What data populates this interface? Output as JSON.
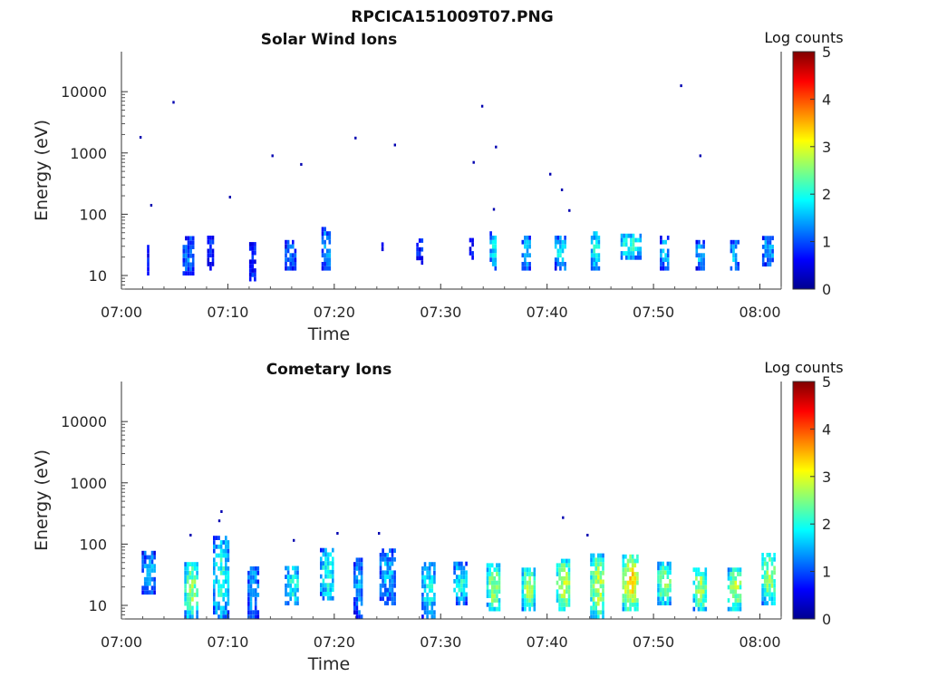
{
  "figure": {
    "title": "RPCICA151009T07.PNG"
  },
  "chart_data": [
    {
      "type": "heatmap",
      "title": "Solar Wind Ions",
      "xlabel": "Time",
      "ylabel": "Energy (eV)",
      "colorbar_label": "Log counts",
      "colorbar_ticks": [
        "0",
        "1",
        "2",
        "3",
        "4",
        "5"
      ],
      "clim": [
        0,
        5
      ],
      "colormap": "jet",
      "x_ticks": [
        "07:00",
        "07:10",
        "07:20",
        "07:30",
        "07:40",
        "07:50",
        "08:00"
      ],
      "y_ticks": [
        "10",
        "100",
        "1000",
        "10000"
      ],
      "y_scale": "log",
      "ylim": [
        6,
        45000
      ],
      "xlim_minutes": [
        0,
        62
      ],
      "bursts": [
        {
          "t": 2.5,
          "e": [
            10,
            30
          ],
          "v": 0.8,
          "w": 0.2
        },
        {
          "t": 6.2,
          "e": [
            10,
            40
          ],
          "v": 1.2,
          "w": 0.9
        },
        {
          "t": 8.3,
          "e": [
            12,
            40
          ],
          "v": 0.8,
          "w": 0.5
        },
        {
          "t": 12.3,
          "e": [
            8,
            35
          ],
          "v": 0.9,
          "w": 0.6
        },
        {
          "t": 15.8,
          "e": [
            12,
            35
          ],
          "v": 1.2,
          "w": 0.9
        },
        {
          "t": 19.2,
          "e": [
            12,
            60
          ],
          "v": 1.4,
          "w": 0.8
        },
        {
          "t": 24.5,
          "e": [
            25,
            30
          ],
          "v": 0.8,
          "w": 0.15
        },
        {
          "t": 28.0,
          "e": [
            15,
            40
          ],
          "v": 0.8,
          "w": 0.6
        },
        {
          "t": 32.8,
          "e": [
            18,
            35
          ],
          "v": 0.8,
          "w": 0.25
        },
        {
          "t": 34.9,
          "e": [
            12,
            45
          ],
          "v": 1.8,
          "w": 0.6
        },
        {
          "t": 38.0,
          "e": [
            12,
            40
          ],
          "v": 1.7,
          "w": 0.8
        },
        {
          "t": 41.2,
          "e": [
            12,
            40
          ],
          "v": 1.8,
          "w": 1.0
        },
        {
          "t": 44.5,
          "e": [
            12,
            50
          ],
          "v": 1.9,
          "w": 0.8
        },
        {
          "t": 47.8,
          "e": [
            18,
            45
          ],
          "v": 2.1,
          "w": 1.8
        },
        {
          "t": 51.0,
          "e": [
            12,
            40
          ],
          "v": 1.6,
          "w": 0.8
        },
        {
          "t": 54.3,
          "e": [
            12,
            35
          ],
          "v": 1.6,
          "w": 0.7
        },
        {
          "t": 57.6,
          "e": [
            12,
            35
          ],
          "v": 1.6,
          "w": 0.8
        },
        {
          "t": 60.7,
          "e": [
            14,
            38
          ],
          "v": 1.5,
          "w": 1.0
        }
      ],
      "specks": [
        {
          "t": 1.8,
          "e": 1800
        },
        {
          "t": 2.8,
          "e": 140
        },
        {
          "t": 4.9,
          "e": 6700
        },
        {
          "t": 10.2,
          "e": 190
        },
        {
          "t": 14.2,
          "e": 900
        },
        {
          "t": 16.9,
          "e": 650
        },
        {
          "t": 22.0,
          "e": 1750
        },
        {
          "t": 25.7,
          "e": 1350
        },
        {
          "t": 33.1,
          "e": 700
        },
        {
          "t": 33.9,
          "e": 5800
        },
        {
          "t": 35.2,
          "e": 1250
        },
        {
          "t": 35.0,
          "e": 120
        },
        {
          "t": 40.3,
          "e": 450
        },
        {
          "t": 41.4,
          "e": 250
        },
        {
          "t": 42.1,
          "e": 115
        },
        {
          "t": 52.6,
          "e": 12500
        },
        {
          "t": 54.4,
          "e": 900
        }
      ]
    },
    {
      "type": "heatmap",
      "title": "Cometary Ions",
      "xlabel": "Time",
      "ylabel": "Energy (eV)",
      "colorbar_label": "Log counts",
      "colorbar_ticks": [
        "0",
        "1",
        "2",
        "3",
        "4",
        "5"
      ],
      "clim": [
        0,
        5
      ],
      "colormap": "jet",
      "x_ticks": [
        "07:00",
        "07:10",
        "07:20",
        "07:30",
        "07:40",
        "07:50",
        "08:00"
      ],
      "y_ticks": [
        "10",
        "100",
        "1000",
        "10000"
      ],
      "y_scale": "log",
      "ylim": [
        6,
        45000
      ],
      "xlim_minutes": [
        0,
        62
      ],
      "bursts": [
        {
          "t": 2.5,
          "e": [
            15,
            70
          ],
          "v": 1.5,
          "w": 1.2
        },
        {
          "t": 6.5,
          "e": [
            6,
            45
          ],
          "v": 2.6,
          "w": 1.2
        },
        {
          "t": 9.3,
          "e": [
            6,
            120
          ],
          "v": 2.0,
          "w": 1.4
        },
        {
          "t": 12.3,
          "e": [
            6,
            40
          ],
          "v": 1.5,
          "w": 0.9
        },
        {
          "t": 16.0,
          "e": [
            10,
            40
          ],
          "v": 2.0,
          "w": 1.3
        },
        {
          "t": 19.3,
          "e": [
            12,
            80
          ],
          "v": 2.0,
          "w": 1.3
        },
        {
          "t": 22.2,
          "e": [
            6,
            55
          ],
          "v": 1.4,
          "w": 0.8
        },
        {
          "t": 25.0,
          "e": [
            10,
            80
          ],
          "v": 1.5,
          "w": 1.5
        },
        {
          "t": 28.8,
          "e": [
            6,
            45
          ],
          "v": 1.9,
          "w": 1.2
        },
        {
          "t": 31.8,
          "e": [
            10,
            45
          ],
          "v": 1.9,
          "w": 1.2
        },
        {
          "t": 34.9,
          "e": [
            8,
            45
          ],
          "v": 2.7,
          "w": 1.2
        },
        {
          "t": 38.2,
          "e": [
            8,
            40
          ],
          "v": 2.6,
          "w": 1.2
        },
        {
          "t": 41.5,
          "e": [
            8,
            50
          ],
          "v": 2.8,
          "w": 1.3
        },
        {
          "t": 44.7,
          "e": [
            6,
            60
          ],
          "v": 2.8,
          "w": 1.3
        },
        {
          "t": 47.8,
          "e": [
            8,
            60
          ],
          "v": 3.3,
          "w": 1.5
        },
        {
          "t": 51.0,
          "e": [
            10,
            45
          ],
          "v": 2.6,
          "w": 1.3
        },
        {
          "t": 54.3,
          "e": [
            8,
            40
          ],
          "v": 2.7,
          "w": 1.2
        },
        {
          "t": 57.6,
          "e": [
            8,
            40
          ],
          "v": 2.7,
          "w": 1.3
        },
        {
          "t": 60.8,
          "e": [
            10,
            70
          ],
          "v": 2.6,
          "w": 1.3
        }
      ],
      "specks": [
        {
          "t": 6.5,
          "e": 140
        },
        {
          "t": 9.4,
          "e": 340
        },
        {
          "t": 9.2,
          "e": 240
        },
        {
          "t": 16.2,
          "e": 115
        },
        {
          "t": 20.3,
          "e": 150
        },
        {
          "t": 24.2,
          "e": 150
        },
        {
          "t": 41.5,
          "e": 270
        },
        {
          "t": 43.8,
          "e": 140
        }
      ]
    }
  ]
}
